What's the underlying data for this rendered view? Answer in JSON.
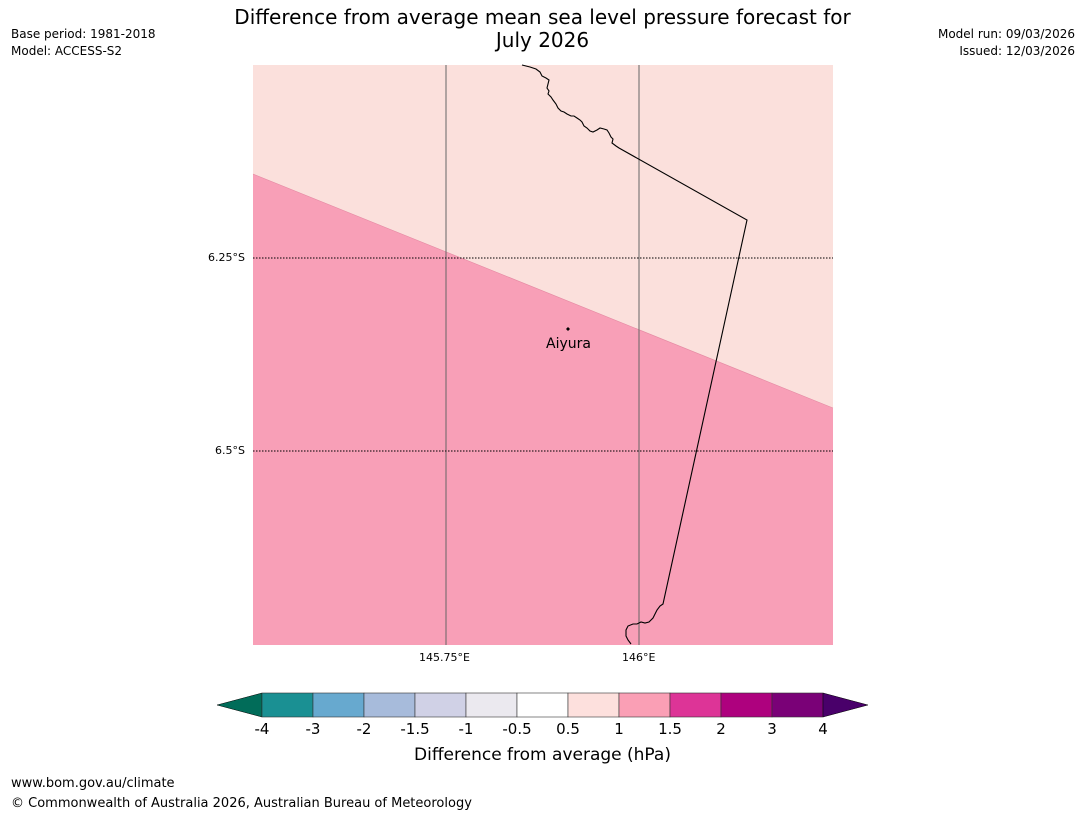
{
  "header": {
    "title_line1": "Difference from average mean sea level pressure forecast for",
    "title_line2": "July 2026",
    "base_period": "Base period: 1981-2018",
    "model": "Model: ACCESS-S2",
    "model_run": "Model run: 09/03/2026",
    "issued": "Issued: 12/03/2026"
  },
  "map": {
    "lat_labels": [
      "6.25°S",
      "6.5°S"
    ],
    "lon_labels": [
      "145.75°E",
      "146°E"
    ],
    "place": {
      "name": "Aiyura",
      "marker": "location-dot-icon"
    },
    "regions": [
      {
        "name": "anomaly-0.5-to-1",
        "color": "#fbe0dc"
      },
      {
        "name": "anomaly-1-to-1.5",
        "color": "#f89fb7"
      }
    ]
  },
  "colorbar": {
    "label": "Difference from average (hPa)",
    "ticks": [
      "-4",
      "-3",
      "-2",
      "-1.5",
      "-1",
      "-0.5",
      "0.5",
      "1",
      "1.5",
      "2",
      "3",
      "4"
    ],
    "colors": [
      "#1a9093",
      "#67a9cf",
      "#a7bbdb",
      "#d0d1e6",
      "#ebe9ef",
      "#ffffff",
      "#fde0dd",
      "#fa9fb5",
      "#dd3497",
      "#ae017e",
      "#7a0177"
    ],
    "low_extend_color": "#016c59",
    "high_extend_color": "#49006a"
  },
  "footer": {
    "url": "www.bom.gov.au/climate",
    "copyright": "© Commonwealth of Australia 2026, Australian Bureau of Meteorology"
  }
}
